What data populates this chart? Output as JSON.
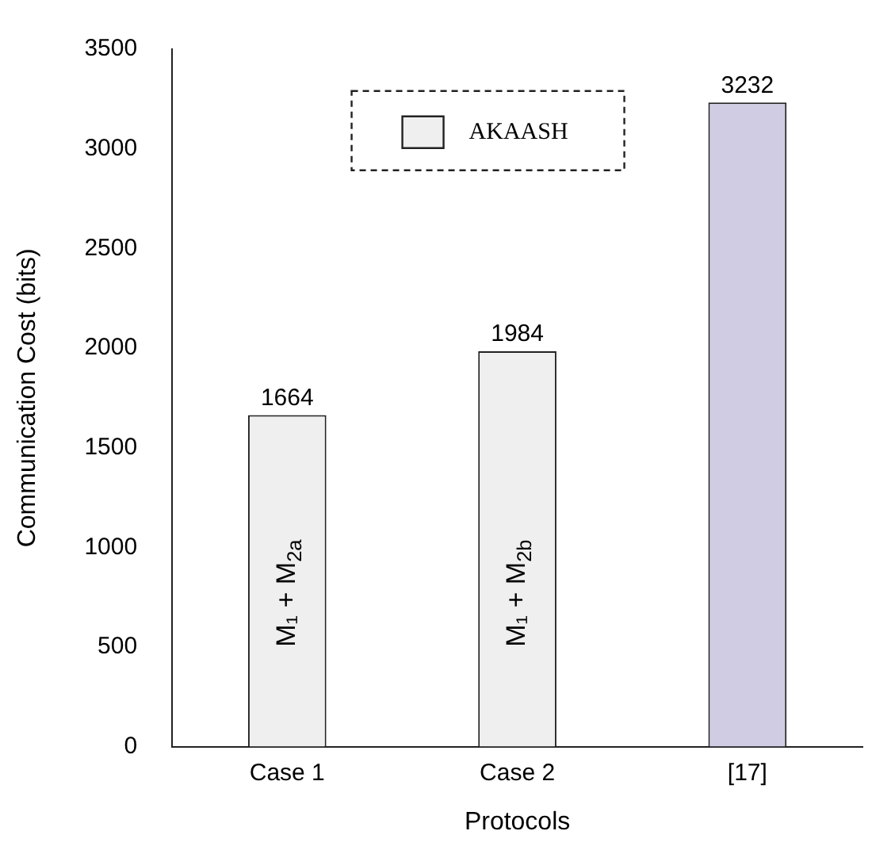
{
  "chart_data": {
    "type": "bar",
    "xlabel": "Protocols",
    "ylabel": "Communication Cost (bits)",
    "categories": [
      "Case 1",
      "Case 2",
      "[17]"
    ],
    "series": [
      {
        "name": "AKAASH",
        "color": "#efefef",
        "values": [
          1664,
          1984,
          null
        ]
      },
      {
        "color": "#d0cce4",
        "values": [
          null,
          null,
          3232
        ]
      }
    ],
    "ylim": [
      0,
      3500
    ],
    "yticks": [
      0,
      500,
      1000,
      1500,
      2000,
      2500,
      3000,
      3500
    ],
    "grid": false,
    "legend": "top",
    "data_labels": true,
    "annotations": [
      "M₁ + M$_{2a}$",
      "M₁ + M$_{2b}$"
    ]
  }
}
